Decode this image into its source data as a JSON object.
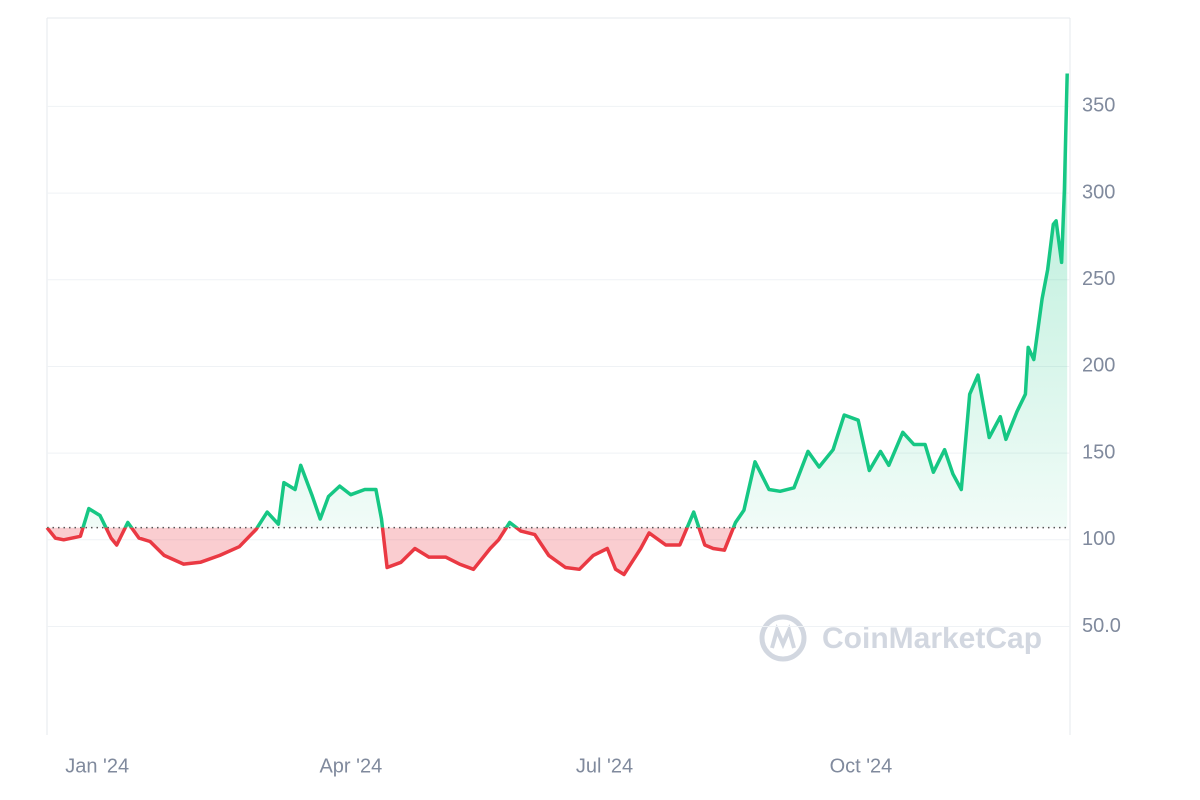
{
  "chart_data": {
    "type": "line",
    "x": [
      0,
      3,
      6,
      12,
      15,
      19,
      23,
      25,
      29,
      33,
      37,
      42,
      49,
      55,
      62,
      69,
      75,
      79,
      83,
      85,
      89,
      91,
      95,
      98,
      101,
      105,
      109,
      114,
      118,
      120,
      122,
      127,
      132,
      137,
      143,
      148,
      153,
      159,
      162,
      166,
      170,
      175,
      180,
      186,
      191,
      196,
      201,
      204,
      207,
      213,
      216,
      222,
      227,
      232,
      236,
      239,
      243,
      247,
      250,
      254,
      259,
      263,
      268,
      273,
      277,
      282,
      286,
      291,
      295,
      299,
      302,
      307,
      311,
      315,
      318,
      322,
      325,
      328,
      331,
      334,
      338,
      342,
      344,
      348,
      351,
      352,
      354,
      357,
      359,
      361,
      362,
      364,
      365,
      366
    ],
    "values": [
      107,
      101,
      100,
      102,
      118,
      114,
      101,
      97,
      110,
      101,
      99,
      91,
      86,
      87,
      91,
      96,
      106,
      116,
      109,
      133,
      129,
      143,
      126,
      112,
      125,
      131,
      126,
      129,
      129,
      112,
      84,
      87,
      95,
      90,
      90,
      86,
      83,
      95,
      100,
      110,
      105,
      103,
      91,
      84,
      83,
      91,
      95,
      83,
      80,
      95,
      104,
      97,
      97,
      116,
      97,
      95,
      94,
      110,
      117,
      145,
      129,
      128,
      130,
      151,
      142,
      152,
      172,
      169,
      140,
      151,
      143,
      162,
      155,
      155,
      139,
      152,
      138,
      129,
      184,
      195,
      159,
      171,
      158,
      174,
      184,
      211,
      204,
      239,
      256,
      282,
      284,
      260,
      302,
      369
    ],
    "baseline": 107,
    "up_color": "#16c784",
    "down_color": "#ea3943",
    "xlim": [
      0,
      367
    ],
    "xticks": [
      {
        "value": 18,
        "label": "Jan '24"
      },
      {
        "value": 109,
        "label": "Apr '24"
      },
      {
        "value": 200,
        "label": "Jul '24"
      },
      {
        "value": 292,
        "label": "Oct '24"
      }
    ],
    "ylim": [
      -12.6,
      401
    ],
    "yticks": [
      {
        "value": 50,
        "label": "50.0"
      },
      100,
      150,
      200,
      250,
      300,
      350
    ],
    "grid": true,
    "watermark": "CoinMarketCap"
  }
}
